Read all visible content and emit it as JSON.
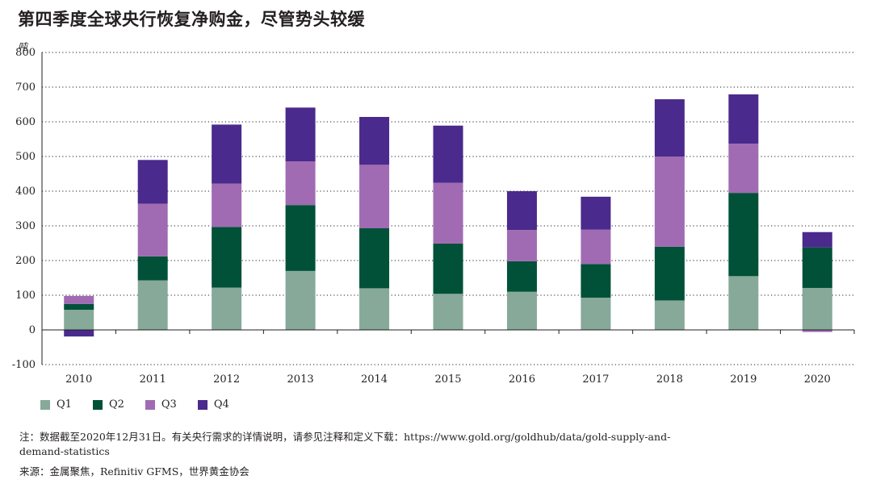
{
  "title": "第四季度全球央行恢复净购金，尽管势头较缓",
  "note": "注：数据截至2020年12月31日。有关央行需求的详情说明，请参见注释和定义下载：https://www.gold.org/goldhub/data/gold-supply-and-demand-statistics",
  "source": "来源：金属聚焦，Refinitiv GFMS，世界黄金协会",
  "colors": {
    "Q1": "#86a99a",
    "Q2": "#005138",
    "Q3": "#a06bb3",
    "Q4": "#4a2a8c"
  },
  "chart_data": {
    "type": "bar",
    "stacked": true,
    "title": "第四季度全球央行恢复净购金，尽管势头较缓",
    "ylabel": "吨",
    "xlabel": "",
    "ylim": [
      -100,
      800
    ],
    "yticks": [
      -100,
      0,
      100,
      200,
      300,
      400,
      500,
      600,
      700,
      800
    ],
    "legend_position": "bottom-left",
    "categories": [
      "2010",
      "2011",
      "2012",
      "2013",
      "2014",
      "2015",
      "2016",
      "2017",
      "2018",
      "2019",
      "2020"
    ],
    "series": [
      {
        "name": "Q1",
        "values": [
          58,
          143,
          122,
          170,
          120,
          104,
          110,
          93,
          85,
          155,
          121
        ]
      },
      {
        "name": "Q2",
        "values": [
          17,
          69,
          175,
          190,
          173,
          145,
          88,
          97,
          155,
          240,
          117
        ]
      },
      {
        "name": "Q3",
        "values": [
          23,
          152,
          125,
          126,
          183,
          175,
          90,
          99,
          260,
          142,
          -6
        ]
      },
      {
        "name": "Q4",
        "values": [
          -19,
          126,
          170,
          155,
          138,
          165,
          112,
          95,
          165,
          142,
          44
        ]
      }
    ]
  }
}
